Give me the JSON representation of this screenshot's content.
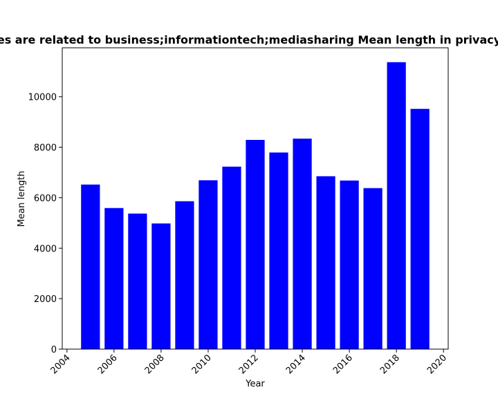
{
  "chart_data": {
    "type": "bar",
    "title": "es are related to business;informationtech;mediasharing Mean length in privacy",
    "xlabel": "Year",
    "ylabel": "Mean length",
    "x": [
      2005,
      2006,
      2007,
      2008,
      2009,
      2010,
      2011,
      2012,
      2013,
      2014,
      2015,
      2016,
      2017,
      2018,
      2019
    ],
    "values": [
      6520,
      5590,
      5370,
      4980,
      5860,
      6690,
      7230,
      8290,
      7790,
      8340,
      6850,
      6680,
      6380,
      11370,
      9520
    ],
    "xlim": [
      2003.8,
      2020.2
    ],
    "ylim": [
      0,
      11940
    ],
    "xticks": [
      2004,
      2006,
      2008,
      2010,
      2012,
      2014,
      2016,
      2018,
      2020
    ],
    "yticks": [
      0,
      2000,
      4000,
      6000,
      8000,
      10000
    ],
    "bar_color": "#0000ff",
    "grid": false,
    "legend": "none"
  }
}
